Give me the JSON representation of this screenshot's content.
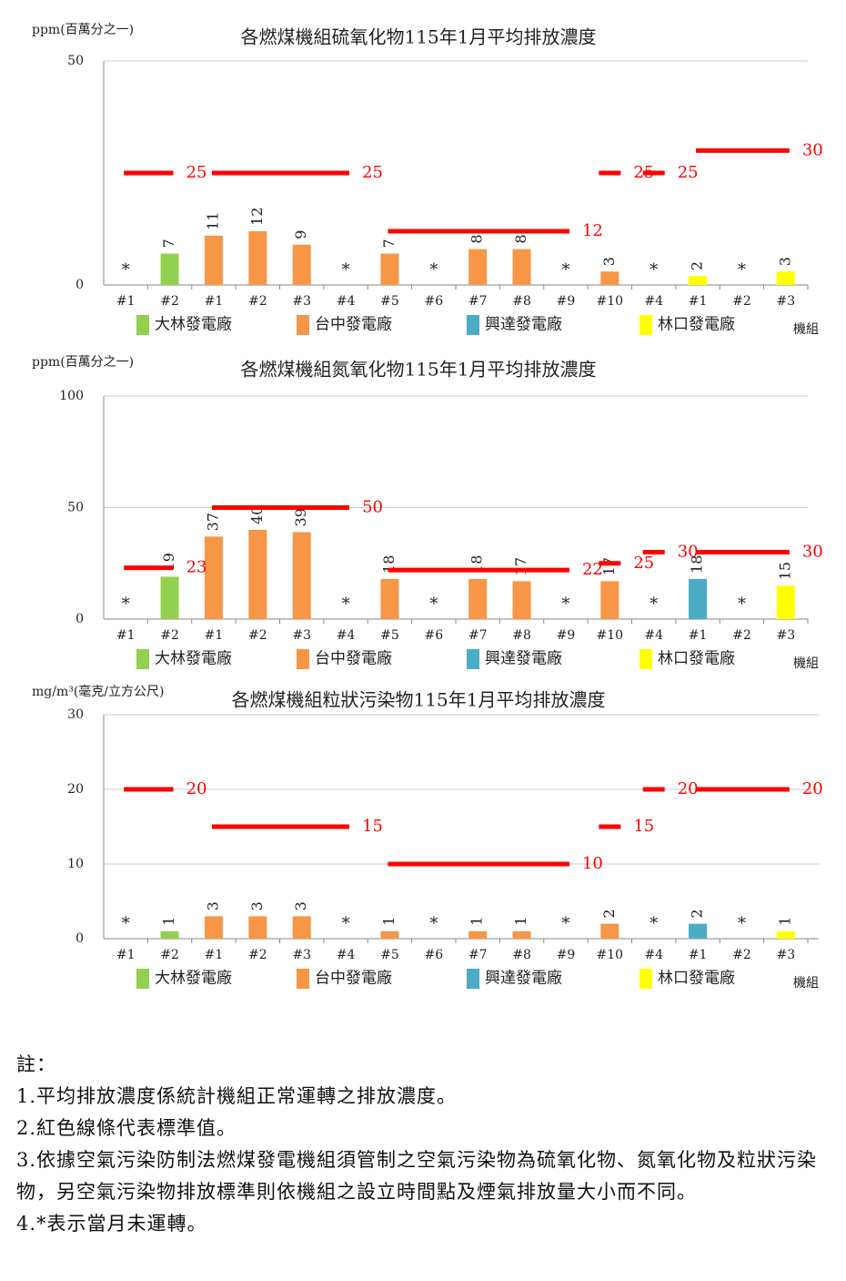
{
  "chart_data": [
    {
      "type": "bar",
      "title": "各燃煤機組硫氧化物115年1月平均排放濃度",
      "y_label": "ppm(百萬分之一)",
      "x_label": "機組",
      "categories": [
        "#1",
        "#2",
        "#1",
        "#2",
        "#3",
        "#4",
        "#5",
        "#6",
        "#7",
        "#8",
        "#9",
        "#10",
        "#4",
        "#1",
        "#2",
        "#3"
      ],
      "values": [
        null,
        7,
        11,
        12,
        9,
        null,
        7,
        null,
        8,
        8,
        null,
        3,
        null,
        2,
        null,
        3
      ],
      "value_labels": [
        "*",
        null,
        null,
        null,
        null,
        "*",
        null,
        "*",
        null,
        null,
        "*",
        null,
        "*",
        null,
        "*",
        null
      ],
      "colors": [
        null,
        "#92d050",
        "#f79646",
        "#f79646",
        "#f79646",
        null,
        "#f79646",
        null,
        "#f79646",
        "#f79646",
        null,
        "#f79646",
        null,
        "#ffff00",
        null,
        "#ffff00"
      ],
      "legend": [
        {
          "name": "大林發電廠",
          "color": "#92d050"
        },
        {
          "name": "台中發電廠",
          "color": "#f79646"
        },
        {
          "name": "興達發電廠",
          "color": "#4bacc6"
        },
        {
          "name": "林口發電廠",
          "color": "#ffff00"
        }
      ],
      "ylim": [
        0,
        50
      ],
      "yticks": [
        0,
        50
      ],
      "grid": true,
      "limit_color": "#ff0000",
      "limits": [
        {
          "value": 25,
          "units": [
            0,
            1
          ]
        },
        {
          "value": 25,
          "units": [
            2,
            5
          ]
        },
        {
          "value": 12,
          "units": [
            6,
            10
          ]
        },
        {
          "value": 25,
          "units": [
            11,
            11
          ]
        },
        {
          "value": 25,
          "units": [
            12,
            12
          ]
        },
        {
          "value": 30,
          "units": [
            13,
            15
          ]
        }
      ]
    },
    {
      "type": "bar",
      "title": "各燃煤機組氮氧化物115年1月平均排放濃度",
      "y_label": "ppm(百萬分之一)",
      "x_label": "機組",
      "categories": [
        "#1",
        "#2",
        "#1",
        "#2",
        "#3",
        "#4",
        "#5",
        "#6",
        "#7",
        "#8",
        "#9",
        "#10",
        "#4",
        "#1",
        "#2",
        "#3"
      ],
      "values": [
        null,
        19,
        37,
        40,
        39,
        null,
        18,
        null,
        18,
        17,
        null,
        17,
        null,
        18,
        null,
        15
      ],
      "value_labels": [
        "*",
        null,
        null,
        null,
        null,
        "*",
        null,
        "*",
        null,
        null,
        "*",
        null,
        "*",
        null,
        "*",
        null
      ],
      "colors": [
        null,
        "#92d050",
        "#f79646",
        "#f79646",
        "#f79646",
        null,
        "#f79646",
        null,
        "#f79646",
        "#f79646",
        null,
        "#f79646",
        null,
        "#4bacc6",
        null,
        "#ffff00"
      ],
      "legend": [
        {
          "name": "大林發電廠",
          "color": "#92d050"
        },
        {
          "name": "台中發電廠",
          "color": "#f79646"
        },
        {
          "name": "興達發電廠",
          "color": "#4bacc6"
        },
        {
          "name": "林口發電廠",
          "color": "#ffff00"
        }
      ],
      "ylim": [
        0,
        100
      ],
      "yticks": [
        0,
        50,
        100
      ],
      "grid": true,
      "limit_color": "#ff0000",
      "limits": [
        {
          "value": 23,
          "units": [
            0,
            1
          ]
        },
        {
          "value": 50,
          "units": [
            2,
            5
          ]
        },
        {
          "value": 22,
          "units": [
            6,
            10
          ]
        },
        {
          "value": 25,
          "units": [
            11,
            11
          ]
        },
        {
          "value": 30,
          "units": [
            12,
            12
          ]
        },
        {
          "value": 30,
          "units": [
            13,
            15
          ]
        }
      ]
    },
    {
      "type": "bar",
      "title": "各燃煤機組粒狀污染物115年1月平均排放濃度",
      "y_label": "mg/m³(毫克/立方公尺)",
      "x_label": "機組",
      "categories": [
        "#1",
        "#2",
        "#1",
        "#2",
        "#3",
        "#4",
        "#5",
        "#6",
        "#7",
        "#8",
        "#9",
        "#10",
        "#4",
        "#1",
        "#2",
        "#3"
      ],
      "values": [
        null,
        1,
        3,
        3,
        3,
        null,
        1,
        null,
        1,
        1,
        null,
        2,
        null,
        2,
        null,
        1
      ],
      "value_labels": [
        "*",
        null,
        null,
        null,
        null,
        "*",
        null,
        "*",
        null,
        null,
        "*",
        null,
        "*",
        null,
        "*",
        null
      ],
      "colors": [
        null,
        "#92d050",
        "#f79646",
        "#f79646",
        "#f79646",
        null,
        "#f79646",
        null,
        "#f79646",
        "#f79646",
        null,
        "#f79646",
        null,
        "#4bacc6",
        null,
        "#ffff00"
      ],
      "legend": [
        {
          "name": "大林發電廠",
          "color": "#92d050"
        },
        {
          "name": "台中發電廠",
          "color": "#f79646"
        },
        {
          "name": "興達發電廠",
          "color": "#4bacc6"
        },
        {
          "name": "林口發電廠",
          "color": "#ffff00"
        }
      ],
      "ylim": [
        0,
        30
      ],
      "yticks": [
        0,
        10,
        20,
        30
      ],
      "grid": true,
      "limit_color": "#ff0000",
      "limits": [
        {
          "value": 20,
          "units": [
            0,
            1
          ]
        },
        {
          "value": 15,
          "units": [
            2,
            5
          ]
        },
        {
          "value": 10,
          "units": [
            6,
            10
          ]
        },
        {
          "value": 15,
          "units": [
            11,
            11
          ]
        },
        {
          "value": 20,
          "units": [
            12,
            12
          ]
        },
        {
          "value": 20,
          "units": [
            13,
            15
          ]
        }
      ]
    }
  ],
  "notes": {
    "heading": "註：",
    "items": [
      "1.平均排放濃度係統計機組正常運轉之排放濃度。",
      "2.紅色線條代表標準值。",
      "3.依據空氣污染防制法燃煤發電機組須管制之空氣污染物為硫氧化物、氮氧化物及粒狀污染物，另空氣污染物排放標準則依機組之設立時間點及煙氣排放量大小而不同。",
      "4.*表示當月未運轉。"
    ]
  }
}
